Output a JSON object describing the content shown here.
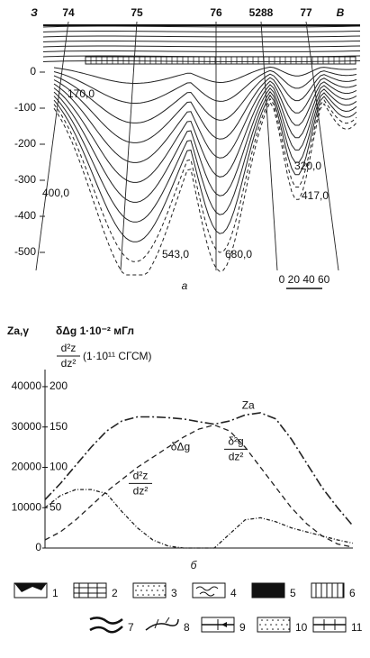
{
  "section_a": {
    "well_labels": [
      "З",
      "74",
      "75",
      "76",
      "5288",
      "77",
      "В"
    ],
    "ylim": [
      50,
      -550
    ],
    "yticks": [
      0,
      -100,
      -200,
      -300,
      -400,
      -500
    ],
    "contour_labels": [
      "170,0",
      "400,0",
      "543,0",
      "680,0",
      "417,0",
      "320,0"
    ],
    "panel_label": "а",
    "scale_label": "0 20 40 60"
  },
  "chart_data": {
    "type": "line",
    "ylabel": "Za,γ",
    "y2label": "δΔg 1·10⁻² мГл",
    "y3label": {
      "numerator": "d²z",
      "denominator": "dz²",
      "unit": "(1·10¹¹ СГСМ)"
    },
    "x": [
      0,
      1,
      2,
      3,
      4,
      5,
      6,
      7,
      8,
      9,
      10,
      11,
      12,
      13,
      14,
      15,
      16,
      17,
      18,
      19,
      20
    ],
    "xlim": [
      0,
      20
    ],
    "ylim": [
      0,
      42000
    ],
    "yticks": [
      0,
      10000,
      20000,
      30000,
      40000
    ],
    "y2lim": [
      0,
      210
    ],
    "y2ticks": [
      50,
      100,
      150,
      200
    ],
    "series": [
      {
        "name": "Za",
        "color": "#222",
        "dash": "10,3,2,3",
        "values": [
          12000,
          16000,
          20500,
          25000,
          29000,
          31500,
          32500,
          32500,
          32300,
          32000,
          31300,
          30700,
          31500,
          33000,
          33500,
          32000,
          27000,
          21000,
          15000,
          10000,
          5500
        ]
      },
      {
        "name": "δΔg",
        "color": "#222",
        "dash": "6,4",
        "values": [
          2000,
          4000,
          7000,
          10500,
          14000,
          17000,
          20000,
          22500,
          25000,
          27500,
          29500,
          30500,
          29000,
          25000,
          20000,
          15000,
          10000,
          6000,
          3000,
          1000,
          200
        ]
      },
      {
        "name": "d²z/dz²",
        "color": "#222",
        "dash": "4,2,1,2",
        "values": [
          10000,
          13000,
          14500,
          14500,
          13500,
          9000,
          5000,
          2000,
          500,
          0,
          0,
          0,
          3500,
          7000,
          7500,
          6500,
          5000,
          4000,
          3000,
          2000,
          1200
        ]
      }
    ],
    "annotation": {
      "numerator": "δ²g",
      "denominator": "dz²"
    },
    "panel_label": "б"
  },
  "legend": [
    "1",
    "2",
    "3",
    "4",
    "5",
    "6",
    "7",
    "8",
    "9",
    "10",
    "11"
  ]
}
